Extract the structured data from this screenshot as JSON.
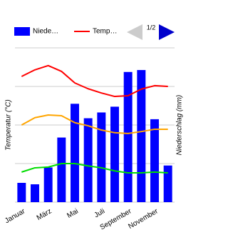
{
  "chart_data": {
    "type": "bar-line",
    "y_label": "Temperatur (°C)",
    "y2_label": "Niederschlag (mm)",
    "categories": [
      "Januar",
      null,
      "März",
      null,
      "Mai",
      null,
      "Juli",
      null,
      "September",
      null,
      "November",
      null
    ],
    "series": [
      {
        "name": "Niede…",
        "type": "bar",
        "axis": "y2",
        "color": "#0000ff",
        "values": [
          20,
          18.5,
          36,
          67,
          102,
          87,
          93,
          99,
          135,
          137,
          86,
          38
        ]
      },
      {
        "name": "Temp…",
        "type": "line",
        "color": "#ff0000",
        "values": [
          22.6,
          24.3,
          25.4,
          23.9,
          20.9,
          19.4,
          18.3,
          17.4,
          17.6,
          19.3,
          20.2,
          20
        ]
      },
      {
        "type": "line",
        "color": "#ffa500",
        "values": [
          10,
          11.9,
          12.6,
          12.4,
          10.6,
          9.8,
          8.7,
          8,
          7.8,
          8.3,
          8.9,
          8.9
        ]
      },
      {
        "type": "line",
        "color": "#00dd00",
        "values": [
          -2.2,
          -1.1,
          -0.9,
          0,
          0,
          -0.6,
          -1.1,
          -1.9,
          -2.4,
          -2.4,
          -2.2,
          -2.4
        ]
      }
    ],
    "ylim": [
      -10,
      30
    ],
    "yticks": [
      -10,
      0,
      10,
      20,
      30
    ],
    "y2lim": [
      0,
      160
    ],
    "grid": true,
    "tick_labels": false,
    "legend_page": "1/2"
  }
}
